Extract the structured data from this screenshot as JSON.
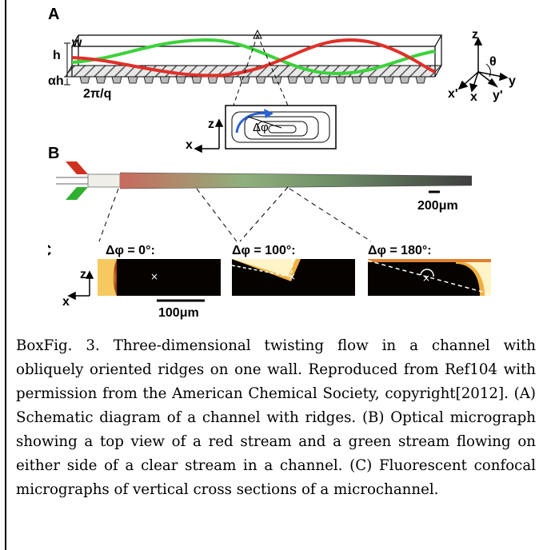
{
  "figure": {
    "panel_a": {
      "letter": "A",
      "label_w": "w",
      "label_h": "h",
      "label_alpha_h": "αh",
      "label_period": "2π/q",
      "axis_z": "z",
      "axis_y": "y",
      "axis_x": "x",
      "axis_x_prime": "x'",
      "axis_y_prime": "y'",
      "angle_label": "θ",
      "inset_axis_z": "z",
      "inset_axis_x": "x",
      "inset_phase": "Δφ",
      "colors": {
        "red_stream": "#e0302a",
        "green_stream": "#3cd23c",
        "inset_arrow": "#2a62d6"
      }
    },
    "panel_b": {
      "letter": "B",
      "scale_bar": "200μm"
    },
    "panel_c": {
      "letter": "C",
      "axis_z": "z",
      "axis_x": "x",
      "scale_bar": "100μm",
      "sections": [
        {
          "label": "Δφ = 0°:"
        },
        {
          "label": "Δφ = 100°:"
        },
        {
          "label": "Δφ = 180°:"
        }
      ]
    }
  },
  "caption": {
    "text": "BoxFig. 3. Three-dimensional twisting flow in a channel with obliquely oriented ridges on one wall. Reproduced from Ref104 with permission from the American Chemical Society, copyright[2012]. (A) Schematic diagram of a channel with ridges. (B) Optical micrograph showing a top view of a red stream and a green stream flowing on either side of a clear stream in a channel. (C) Fluorescent confocal micrographs of vertical cross sections of a microchannel."
  }
}
